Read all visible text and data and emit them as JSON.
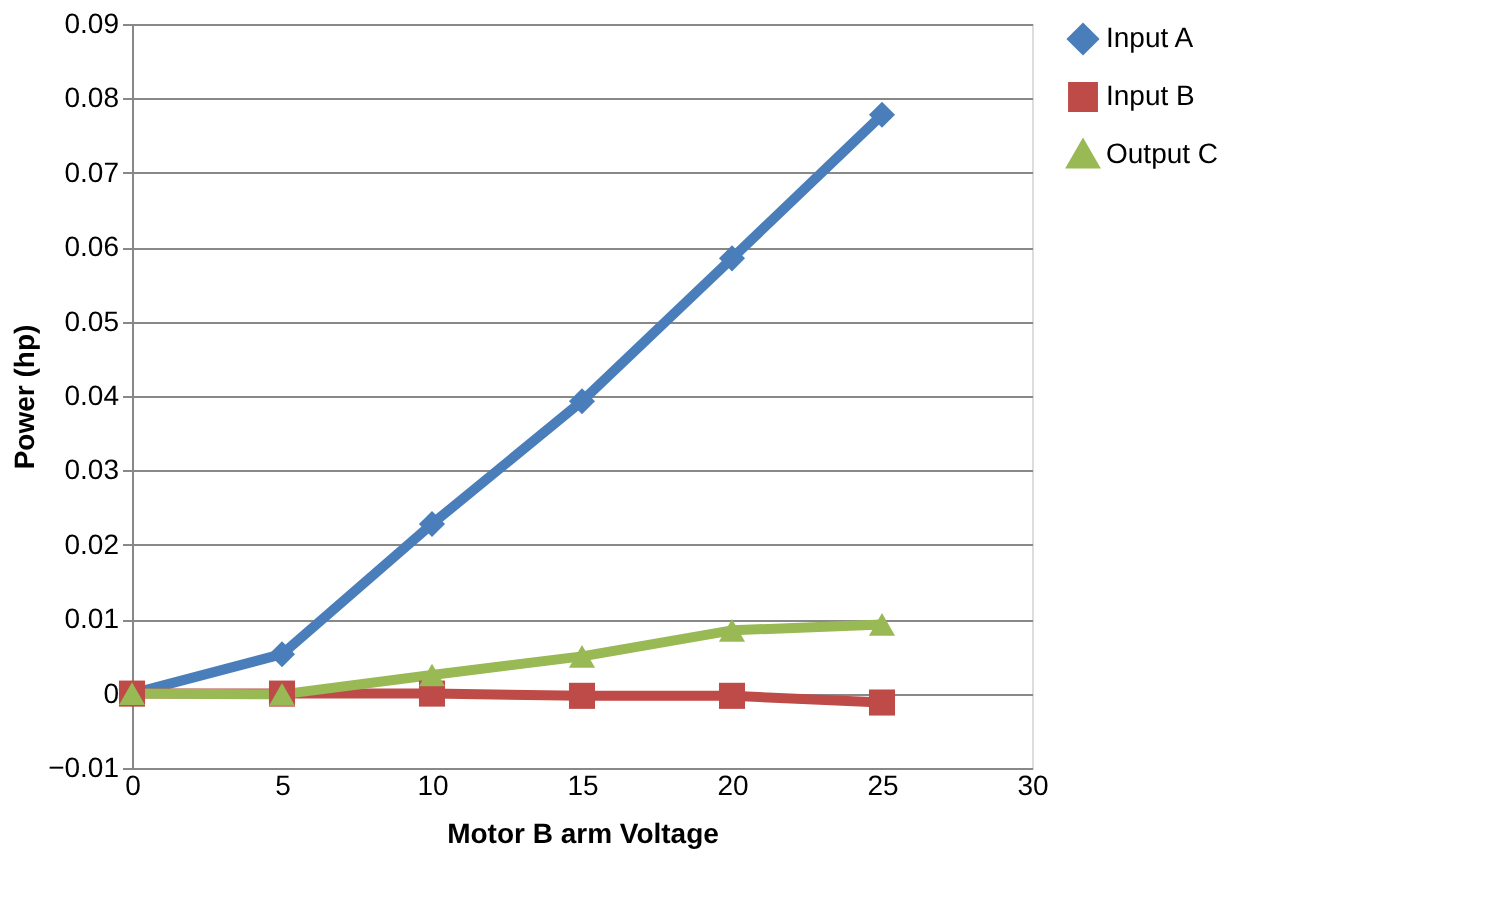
{
  "chart_data": {
    "type": "line",
    "xlabel": "Motor B arm Voltage",
    "ylabel": "Power (hp)",
    "x": [
      0,
      5,
      10,
      15,
      20,
      25
    ],
    "series": [
      {
        "name": "Input A",
        "color": "#4a7ebb",
        "marker": "diamond",
        "values": [
          0,
          0.0053,
          0.0228,
          0.0393,
          0.0585,
          0.0778
        ]
      },
      {
        "name": "Input B",
        "color": "#be4b48",
        "marker": "square",
        "values": [
          0,
          0,
          0,
          -0.0003,
          -0.0003,
          -0.0012
        ]
      },
      {
        "name": "Output C",
        "color": "#98b954",
        "marker": "triangle",
        "values": [
          0,
          -0.0001,
          0.0025,
          0.005,
          0.0085,
          0.0093
        ]
      }
    ],
    "xlim": [
      0,
      30
    ],
    "xticks": [
      0,
      5,
      10,
      15,
      20,
      25,
      30
    ],
    "ylim": [
      -0.01,
      0.09
    ],
    "yticks": [
      -0.01,
      0,
      0.01,
      0.02,
      0.03,
      0.04,
      0.05,
      0.06,
      0.07,
      0.08,
      0.09
    ],
    "grid": "y",
    "legend": "right",
    "line_style": "solid"
  }
}
